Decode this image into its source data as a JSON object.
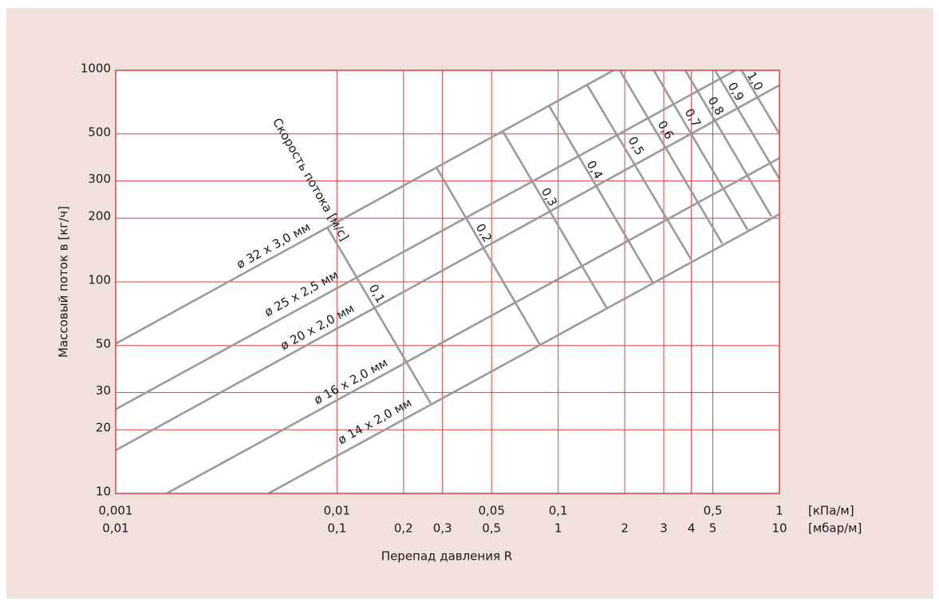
{
  "chart_data": {
    "type": "line",
    "y_label": "Массовый поток в [кг/ч]",
    "x_label": "Перепад давления R",
    "x_unit": "[кПа/м]",
    "x2_unit": "[мбар/м]",
    "log_x": true,
    "log_y": true,
    "grid": true,
    "grid_color": "#e0403c",
    "xlim": [
      0.001,
      1
    ],
    "x2lim": [
      0.01,
      10
    ],
    "ylim": [
      10,
      1000
    ],
    "xticks": [
      {
        "value": 0.001,
        "label": "0,001"
      },
      {
        "value": 0.01,
        "label": "0,01"
      },
      {
        "value": 0.05,
        "label": "0,05"
      },
      {
        "value": 0.1,
        "label": "0,1"
      },
      {
        "value": 0.5,
        "label": "0,5"
      },
      1
    ],
    "x2ticks": [
      {
        "value": 0.01,
        "label": "0,01"
      },
      {
        "value": 0.1,
        "label": "0,1"
      },
      {
        "value": 0.2,
        "label": "0,2"
      },
      {
        "value": 0.3,
        "label": "0,3"
      },
      {
        "value": 0.5,
        "label": "0,5"
      },
      1,
      2,
      3,
      4,
      5,
      10
    ],
    "yticks": [
      10,
      20,
      30,
      50,
      100,
      200,
      300,
      500,
      1000
    ],
    "series": [
      {
        "name": "ø 32 x 3,0 мм",
        "color": "#9a9a9a",
        "x": [
          0.001,
          0.178
        ],
        "values": [
          51,
          1000
        ]
      },
      {
        "name": "ø 25 x 2,5 мм",
        "color": "#9a9a9a",
        "x": [
          0.001,
          0.634
        ],
        "values": [
          25,
          1000
        ]
      },
      {
        "name": "ø 20 x 2,0 мм",
        "color": "#9a9a9a",
        "x": [
          0.001,
          1
        ],
        "values": [
          16,
          850
        ]
      },
      {
        "name": "ø 16 x 2,0 мм",
        "color": "#9a9a9a",
        "x": [
          0.0017,
          1
        ],
        "values": [
          10,
          385
        ]
      },
      {
        "name": "ø 14 x 2,0 мм",
        "color": "#9a9a9a",
        "x": [
          0.0049,
          1
        ],
        "values": [
          10,
          209
        ]
      }
    ],
    "velocity_title": "Скорость потока [м/с]",
    "velocity_lines": [
      {
        "label": "0,1",
        "x": [
          0.00904,
          0.0265
        ],
        "values": [
          181,
          26.7
        ]
      },
      {
        "label": "0,2",
        "x": [
          0.0282,
          0.0828
        ],
        "values": [
          347,
          50.3
        ]
      },
      {
        "label": "0,3",
        "x": [
          0.0561,
          0.165
        ],
        "values": [
          517,
          75.7
        ]
      },
      {
        "label": "0,4",
        "x": [
          0.0908,
          0.267
        ],
        "values": [
          682,
          100
        ]
      },
      {
        "label": "0,5",
        "x": [
          0.135,
          0.398
        ],
        "values": [
          855,
          128
        ]
      },
      {
        "label": "0,6",
        "x": [
          0.187,
          0.551
        ],
        "values": [
          1026,
          152
        ]
      },
      {
        "label": "0,7",
        "x": [
          0.244,
          0.718
        ],
        "values": [
          1200,
          176
        ]
      },
      {
        "label": "0,8",
        "x": [
          0.313,
          0.92
        ],
        "values": [
          1380,
          204
        ]
      },
      {
        "label": "0,9",
        "x": [
          0.394,
          1.16
        ],
        "values": [
          1585,
          236
        ]
      },
      {
        "label": "1,0",
        "x": [
          0.486,
          1.43
        ],
        "values": [
          1774,
          267
        ]
      }
    ]
  }
}
